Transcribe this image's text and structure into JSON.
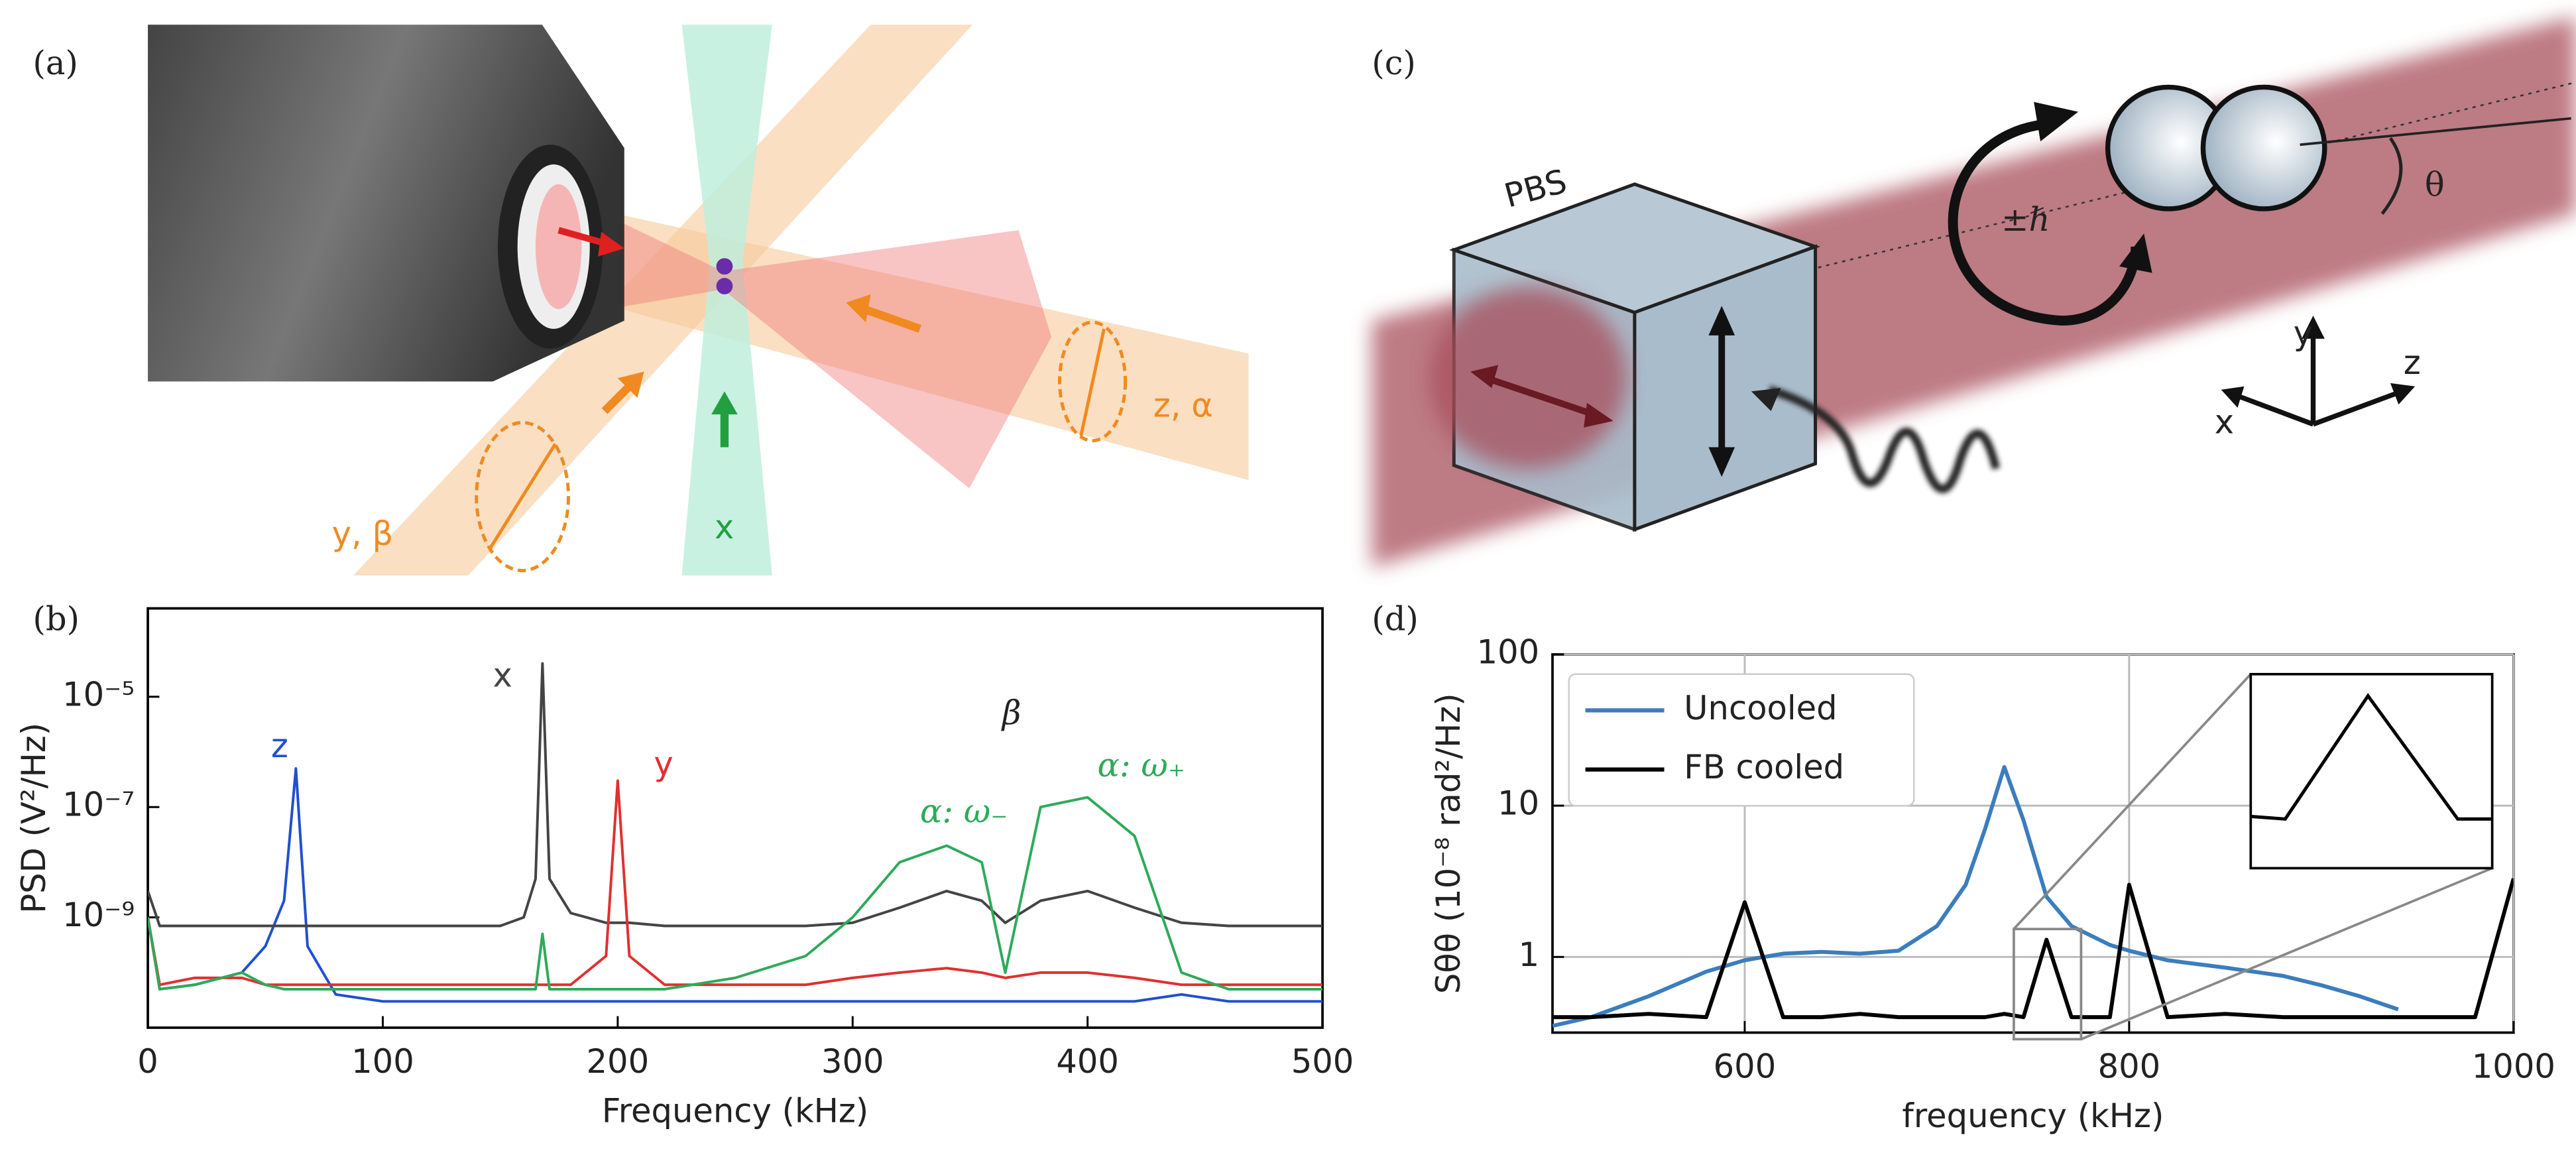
{
  "panels": {
    "a": {
      "label": "(a)",
      "beams": [
        "z, α",
        "y, β",
        "x"
      ]
    },
    "c": {
      "label": "(c)",
      "texts": [
        "PBS",
        "±ℏ",
        "θ"
      ],
      "axes": [
        "y",
        "z",
        "x"
      ]
    }
  },
  "chart_data": [
    {
      "type": "line",
      "panel_label": "(b)",
      "xlabel": "Frequency (kHz)",
      "ylabel": "PSD (V²/Hz)",
      "log_y": true,
      "grid": false,
      "x": [
        0,
        5,
        20,
        40,
        50,
        58,
        63,
        68,
        80,
        100,
        150,
        160,
        165,
        168,
        171,
        180,
        195,
        200,
        205,
        220,
        250,
        280,
        300,
        320,
        340,
        355,
        365,
        380,
        400,
        420,
        440,
        460,
        500
      ],
      "xlim": [
        0,
        500
      ],
      "xticks": [
        0,
        100,
        200,
        300,
        400,
        500
      ],
      "ylim": [
        1e-11,
        0.0004
      ],
      "yticks": [
        {
          "value": 1e-09,
          "label": "10⁻⁹"
        },
        {
          "value": 1e-07,
          "label": "10⁻⁷"
        },
        {
          "value": 1e-05,
          "label": "10⁻⁵"
        }
      ],
      "series": [
        {
          "name": "z",
          "color": "#2050d0",
          "values": [
            1e-09,
            5e-11,
            6e-11,
            1e-10,
            3e-10,
            2e-09,
            5e-07,
            3e-10,
            4e-11,
            3e-11,
            3e-11,
            3e-11,
            3e-11,
            3e-11,
            3e-11,
            3e-11,
            3e-11,
            3e-11,
            3e-11,
            3e-11,
            3e-11,
            3e-11,
            3e-11,
            3e-11,
            3e-11,
            3e-11,
            3e-11,
            3e-11,
            3e-11,
            3e-11,
            4e-11,
            3e-11,
            3e-11
          ]
        },
        {
          "name": "x",
          "color": "#444444",
          "values": [
            3e-09,
            7e-10,
            7e-10,
            7e-10,
            7e-10,
            7e-10,
            7e-10,
            7e-10,
            7e-10,
            7e-10,
            7e-10,
            1e-09,
            5e-09,
            4e-05,
            5e-09,
            1.2e-09,
            8e-10,
            8e-10,
            8e-10,
            7e-10,
            7e-10,
            7e-10,
            8e-10,
            1.5e-09,
            3e-09,
            2e-09,
            8e-10,
            2e-09,
            3e-09,
            1.5e-09,
            8e-10,
            7e-10,
            7e-10
          ]
        },
        {
          "name": "y",
          "color": "#e03030",
          "values": [
            1e-09,
            6e-11,
            8e-11,
            8e-11,
            6e-11,
            6e-11,
            6e-11,
            6e-11,
            6e-11,
            6e-11,
            6e-11,
            6e-11,
            6e-11,
            6e-11,
            6e-11,
            6e-11,
            2e-10,
            3e-07,
            2e-10,
            6e-11,
            6e-11,
            6e-11,
            8e-11,
            1e-10,
            1.2e-10,
            1e-10,
            8e-11,
            1e-10,
            1e-10,
            8e-11,
            6e-11,
            6e-11,
            6e-11
          ]
        },
        {
          "color": "#2eaa5a",
          "values": [
            1e-09,
            5e-11,
            6e-11,
            1e-10,
            6e-11,
            5e-11,
            5e-11,
            5e-11,
            5e-11,
            5e-11,
            5e-11,
            5e-11,
            5e-11,
            5e-10,
            5e-11,
            5e-11,
            5e-11,
            5e-11,
            5e-11,
            5e-11,
            8e-11,
            2e-10,
            1e-09,
            1e-08,
            2e-08,
            1e-08,
            1e-10,
            1e-07,
            1.5e-07,
            3e-08,
            1e-10,
            5e-11,
            5e-11
          ]
        }
      ],
      "annotations": [
        {
          "text": "β",
          "color": "#222222"
        },
        {
          "text": "α: ω₋",
          "color": "#2eaa5a"
        },
        {
          "text": "α: ω₊",
          "color": "#2eaa5a"
        }
      ]
    },
    {
      "type": "line",
      "panel_label": "(d)",
      "xlabel": "frequency (kHz)",
      "ylabel": "Sθθ (10⁻⁸ rad²/Hz)",
      "log_y": true,
      "grid": true,
      "legend": "upper left",
      "x": [
        500,
        520,
        550,
        580,
        600,
        620,
        640,
        660,
        680,
        700,
        715,
        725,
        735,
        745,
        757,
        770,
        790,
        800,
        820,
        850,
        880,
        900,
        920,
        940,
        960,
        980,
        1000
      ],
      "xlim": [
        500,
        1000
      ],
      "xticks": [
        600,
        800,
        1000
      ],
      "ylim": [
        0.316,
        100
      ],
      "yticks": [
        1,
        10,
        100
      ],
      "series": [
        {
          "name": "Uncooled",
          "color": "#3b7dbd",
          "values": [
            0.35,
            0.4,
            0.55,
            0.8,
            0.95,
            1.05,
            1.08,
            1.05,
            1.1,
            1.6,
            3,
            7,
            18,
            8,
            2.5,
            1.6,
            1.2,
            1.1,
            0.95,
            0.85,
            0.75,
            0.65,
            0.55,
            0.45,
            null,
            null,
            null
          ]
        },
        {
          "name": "FB cooled",
          "color": "#000000",
          "values": [
            0.4,
            0.4,
            0.42,
            0.4,
            2.3,
            0.4,
            0.4,
            0.42,
            0.4,
            0.4,
            0.4,
            0.4,
            0.42,
            0.4,
            1.3,
            0.4,
            0.4,
            3,
            0.4,
            0.42,
            0.4,
            0.4,
            0.4,
            0.4,
            0.4,
            0.4,
            3.3
          ]
        }
      ]
    }
  ]
}
